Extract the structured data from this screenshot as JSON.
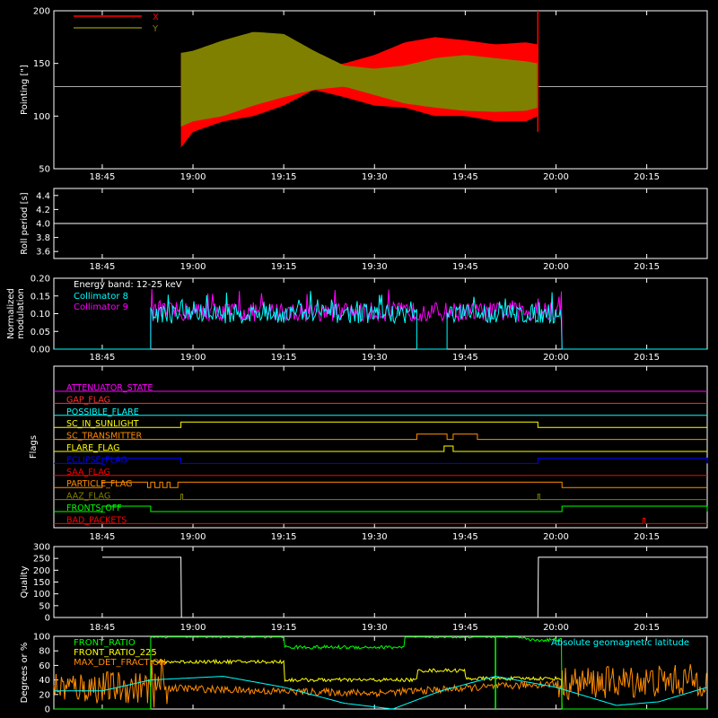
{
  "time_ticks": [
    "18:45",
    "19:00",
    "19:15",
    "19:30",
    "19:45",
    "20:00",
    "20:15"
  ],
  "chart_data": [
    {
      "id": "pointing",
      "type": "area",
      "ylabel": "Pointing [\"]",
      "ylim": [
        50,
        200
      ],
      "yticks": [
        "50",
        "100",
        "150",
        "200"
      ],
      "reference_line": 128,
      "series": [
        {
          "name": "X",
          "color": "#ff0000",
          "start": "18:58",
          "end": "19:57",
          "envelope_time": [
            "18:58",
            "19:00",
            "19:05",
            "19:10",
            "19:15",
            "19:20",
            "19:25",
            "19:30",
            "19:35",
            "19:40",
            "19:45",
            "19:50",
            "19:55",
            "19:57"
          ],
          "upper": [
            160,
            150,
            160,
            162,
            160,
            145,
            150,
            158,
            170,
            175,
            172,
            168,
            170,
            168
          ],
          "lower": [
            70,
            85,
            95,
            100,
            110,
            125,
            118,
            110,
            108,
            100,
            100,
            95,
            95,
            100
          ]
        },
        {
          "name": "Y",
          "color": "#808000",
          "start": "18:58",
          "end": "19:57",
          "envelope_time": [
            "18:58",
            "19:00",
            "19:05",
            "19:10",
            "19:15",
            "19:20",
            "19:25",
            "19:30",
            "19:35",
            "19:40",
            "19:45",
            "19:50",
            "19:55",
            "19:57"
          ],
          "upper": [
            160,
            162,
            172,
            180,
            178,
            162,
            148,
            145,
            148,
            155,
            158,
            155,
            152,
            150
          ],
          "lower": [
            90,
            95,
            100,
            110,
            118,
            125,
            128,
            120,
            112,
            108,
            105,
            104,
            105,
            108
          ]
        }
      ]
    },
    {
      "id": "roll",
      "type": "line",
      "ylabel": "Roll period [s]",
      "ylim": [
        3.5,
        4.5
      ],
      "yticks": [
        "3.6",
        "3.8",
        "4.0",
        "4.2",
        "4.4"
      ],
      "series": [
        {
          "name": "",
          "color": "#ffffff",
          "value": 4.0
        }
      ]
    },
    {
      "id": "modulation",
      "type": "line",
      "ylabel": "Normalized modulation",
      "ylim": [
        0,
        0.2
      ],
      "yticks": [
        "0.00",
        "0.05",
        "0.10",
        "0.15",
        "0.20"
      ],
      "annotation": "Energy band: 12-25 keV",
      "series": [
        {
          "name": "Collimator 8",
          "color": "#00ffff",
          "on_segments": [
            [
              "18:53",
              "19:37"
            ],
            [
              "19:42",
              "20:01"
            ]
          ],
          "level": 0.1
        },
        {
          "name": "Collimator 9",
          "color": "#ff00ff",
          "on_segments": [
            [
              "18:53",
              "20:01"
            ]
          ],
          "level": 0.105
        }
      ]
    },
    {
      "id": "flags",
      "type": "line",
      "ylabel": "Flags",
      "series": [
        {
          "name": "ATTENUATOR_STATE",
          "color": "#ff00ff",
          "high": []
        },
        {
          "name": "GAP_FLAG",
          "color": "#ff3030",
          "high": []
        },
        {
          "name": "POSSIBLE_FLARE",
          "color": "#00ffff",
          "high": []
        },
        {
          "name": "SC_IN_SUNLIGHT",
          "color": "#ffff00",
          "high": [
            [
              "18:58",
              "19:57"
            ]
          ]
        },
        {
          "name": "SC_TRANSMITTER",
          "color": "#ff8c00",
          "high": [
            [
              "19:37",
              "19:42"
            ],
            [
              "19:43",
              "19:47"
            ]
          ]
        },
        {
          "name": "FLARE_FLAG",
          "color": "#ffff00",
          "high": [
            [
              "19:41.5",
              "19:43"
            ]
          ]
        },
        {
          "name": "ECLIPSE_FLAG",
          "color": "#0000ff",
          "high": [
            [
              "18:45",
              "18:58"
            ],
            [
              "19:57",
              "20:25"
            ]
          ]
        },
        {
          "name": "SAA_FLAG",
          "color": "#ff0000",
          "high": []
        },
        {
          "name": "PARTICLE_FLAG",
          "color": "#ff8c00",
          "high": [
            [
              "18:45",
              "18:52.5"
            ],
            [
              "18:53",
              "18:53.7"
            ],
            [
              "18:54.5",
              "18:55"
            ],
            [
              "18:55.7",
              "18:56.2"
            ],
            [
              "18:57.5",
              "20:01"
            ]
          ]
        },
        {
          "name": "AAZ_FLAG",
          "color": "#808000",
          "high": [
            [
              "18:58",
              "18:58.3"
            ],
            [
              "19:57",
              "19:57.3"
            ]
          ]
        },
        {
          "name": "FRONTS_OFF",
          "color": "#00ff00",
          "high": [
            [
              "18:45",
              "18:53"
            ],
            [
              "20:01",
              "20:25"
            ]
          ]
        },
        {
          "name": "BAD_PACKETS",
          "color": "#ff0000",
          "high": [
            [
              "20:14.4",
              "20:14.7"
            ]
          ]
        }
      ]
    },
    {
      "id": "quality",
      "type": "line",
      "ylabel": "Quality",
      "ylim": [
        0,
        300
      ],
      "yticks": [
        "0",
        "50",
        "100",
        "150",
        "200",
        "250",
        "300"
      ],
      "series": [
        {
          "name": "",
          "color": "#ffffff",
          "steps": [
            [
              "18:45",
              255
            ],
            [
              "18:58",
              255
            ],
            [
              "18:58.1",
              0
            ],
            [
              "19:57",
              0
            ],
            [
              "19:57.1",
              255
            ],
            [
              "20:25",
              255
            ]
          ]
        }
      ]
    },
    {
      "id": "latitude",
      "type": "line",
      "ylabel": "Degrees or %",
      "ylim": [
        0,
        100
      ],
      "yticks": [
        "0",
        "20",
        "40",
        "60",
        "80",
        "100"
      ],
      "series": [
        {
          "name": "FRONT_RATIO",
          "color": "#00ff00",
          "steps": [
            [
              "18:53",
              100
            ],
            [
              "19:15",
              85
            ],
            [
              "19:35",
              100
            ],
            [
              "19:55",
              95
            ],
            [
              "20:01",
              0
            ]
          ]
        },
        {
          "name": "FRONT_RATIO_225",
          "color": "#ffff00",
          "steps": [
            [
              "18:53",
              65
            ],
            [
              "19:15",
              40
            ],
            [
              "19:37",
              53
            ],
            [
              "19:45",
              42
            ],
            [
              "20:01",
              0
            ]
          ]
        },
        {
          "name": "MAX_DET_FRACTION",
          "color": "#ff8c00",
          "steps": [
            [
              "18:45",
              30
            ],
            [
              "18:53",
              30
            ],
            [
              "19:10",
              25
            ],
            [
              "19:30",
              22
            ],
            [
              "20:00",
              35
            ],
            [
              "20:25",
              40
            ]
          ]
        },
        {
          "name": "Absolute geomagnetic latitude",
          "color": "#00ffff",
          "curve_time": [
            "18:45",
            "18:53",
            "19:05",
            "19:15",
            "19:25",
            "19:33",
            "19:41",
            "19:50",
            "20:00",
            "20:10",
            "20:17",
            "20:25"
          ],
          "curve_values": [
            25,
            40,
            45,
            30,
            8,
            0,
            25,
            45,
            30,
            5,
            10,
            30
          ]
        }
      ]
    }
  ]
}
